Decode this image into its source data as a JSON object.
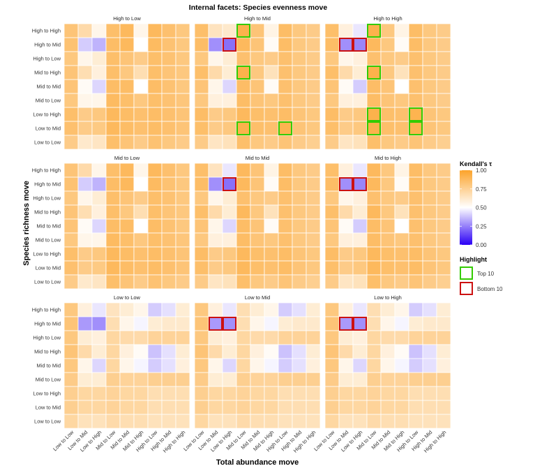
{
  "chart_data": {
    "type": "heatmap",
    "title": "Internal facets: Species evenness move",
    "xlabel": "Total abundance move",
    "ylabel": "Species richness move",
    "x_categories": [
      "Low to Low",
      "Low to Mid",
      "Low to High",
      "Mid to Low",
      "Mid to Mid",
      "Mid to High",
      "High to Low",
      "High to Mid",
      "High to High"
    ],
    "y_categories": [
      "High to High",
      "High to Mid",
      "High to Low",
      "Mid to High",
      "Mid to Mid",
      "Mid to Low",
      "Low to High",
      "Low to Mid",
      "Low to Low"
    ],
    "panels": [
      {
        "title": "High to Low",
        "values": [
          [
            0.82,
            0.7,
            0.55,
            0.85,
            0.88,
            0.55,
            0.88,
            0.84,
            0.8
          ],
          [
            0.83,
            0.4,
            0.35,
            0.86,
            0.88,
            0.5,
            0.87,
            0.83,
            0.8
          ],
          [
            0.8,
            0.55,
            0.6,
            0.85,
            0.82,
            0.78,
            0.85,
            0.83,
            0.8
          ],
          [
            0.82,
            0.68,
            0.58,
            0.85,
            0.8,
            0.68,
            0.85,
            0.82,
            0.8
          ],
          [
            0.82,
            0.52,
            0.42,
            0.86,
            0.86,
            0.5,
            0.86,
            0.83,
            0.8
          ],
          [
            0.8,
            0.55,
            0.55,
            0.87,
            0.85,
            0.8,
            0.85,
            0.83,
            0.81
          ],
          [
            0.85,
            0.78,
            0.8,
            0.88,
            0.86,
            0.84,
            0.86,
            0.84,
            0.82
          ],
          [
            0.84,
            0.78,
            0.79,
            0.88,
            0.86,
            0.84,
            0.86,
            0.84,
            0.82
          ],
          [
            0.78,
            0.62,
            0.64,
            0.85,
            0.82,
            0.78,
            0.83,
            0.8,
            0.78
          ]
        ],
        "top10": [],
        "bottom10": []
      },
      {
        "title": "High to Mid",
        "values": [
          [
            0.85,
            0.65,
            0.62,
            0.92,
            0.82,
            0.56,
            0.86,
            0.8,
            0.78
          ],
          [
            0.86,
            0.28,
            0.22,
            0.88,
            0.82,
            0.52,
            0.86,
            0.8,
            0.78
          ],
          [
            0.8,
            0.55,
            0.6,
            0.84,
            0.8,
            0.78,
            0.84,
            0.8,
            0.78
          ],
          [
            0.85,
            0.7,
            0.6,
            0.92,
            0.8,
            0.66,
            0.84,
            0.8,
            0.78
          ],
          [
            0.82,
            0.55,
            0.42,
            0.86,
            0.82,
            0.52,
            0.84,
            0.8,
            0.78
          ],
          [
            0.8,
            0.58,
            0.58,
            0.86,
            0.82,
            0.8,
            0.84,
            0.8,
            0.78
          ],
          [
            0.86,
            0.78,
            0.8,
            0.88,
            0.85,
            0.84,
            0.86,
            0.82,
            0.8
          ],
          [
            0.85,
            0.78,
            0.8,
            0.92,
            0.85,
            0.84,
            0.91,
            0.82,
            0.8
          ],
          [
            0.78,
            0.64,
            0.66,
            0.85,
            0.8,
            0.78,
            0.82,
            0.78,
            0.76
          ]
        ],
        "top10": [
          [
            0,
            3
          ],
          [
            3,
            3
          ],
          [
            7,
            3
          ],
          [
            7,
            6
          ]
        ],
        "bottom10": [
          [
            1,
            2
          ]
        ]
      },
      {
        "title": "High to High",
        "values": [
          [
            0.85,
            0.58,
            0.45,
            0.92,
            0.8,
            0.56,
            0.86,
            0.8,
            0.78
          ],
          [
            0.86,
            0.28,
            0.26,
            0.88,
            0.8,
            0.52,
            0.86,
            0.8,
            0.78
          ],
          [
            0.8,
            0.55,
            0.58,
            0.84,
            0.8,
            0.78,
            0.84,
            0.8,
            0.78
          ],
          [
            0.85,
            0.7,
            0.6,
            0.92,
            0.8,
            0.66,
            0.84,
            0.8,
            0.78
          ],
          [
            0.82,
            0.52,
            0.4,
            0.86,
            0.82,
            0.5,
            0.84,
            0.8,
            0.78
          ],
          [
            0.8,
            0.58,
            0.58,
            0.86,
            0.82,
            0.8,
            0.84,
            0.8,
            0.78
          ],
          [
            0.86,
            0.78,
            0.8,
            0.92,
            0.85,
            0.84,
            0.91,
            0.82,
            0.8
          ],
          [
            0.85,
            0.78,
            0.8,
            0.92,
            0.85,
            0.84,
            0.91,
            0.82,
            0.8
          ],
          [
            0.78,
            0.64,
            0.66,
            0.85,
            0.8,
            0.78,
            0.82,
            0.78,
            0.76
          ]
        ],
        "top10": [
          [
            0,
            3
          ],
          [
            3,
            3
          ],
          [
            6,
            3
          ],
          [
            7,
            3
          ],
          [
            6,
            6
          ],
          [
            7,
            6
          ]
        ],
        "bottom10": [
          [
            1,
            1
          ],
          [
            1,
            2
          ]
        ]
      },
      {
        "title": "Mid to Low",
        "values": [
          [
            0.82,
            0.7,
            0.55,
            0.85,
            0.88,
            0.55,
            0.88,
            0.84,
            0.8
          ],
          [
            0.83,
            0.4,
            0.35,
            0.86,
            0.88,
            0.5,
            0.87,
            0.83,
            0.8
          ],
          [
            0.8,
            0.55,
            0.6,
            0.85,
            0.82,
            0.78,
            0.85,
            0.83,
            0.8
          ],
          [
            0.82,
            0.68,
            0.58,
            0.85,
            0.8,
            0.68,
            0.85,
            0.82,
            0.8
          ],
          [
            0.82,
            0.52,
            0.42,
            0.86,
            0.86,
            0.5,
            0.86,
            0.83,
            0.8
          ],
          [
            0.8,
            0.55,
            0.55,
            0.87,
            0.85,
            0.8,
            0.85,
            0.83,
            0.81
          ],
          [
            0.85,
            0.78,
            0.8,
            0.88,
            0.86,
            0.84,
            0.86,
            0.84,
            0.82
          ],
          [
            0.84,
            0.78,
            0.79,
            0.88,
            0.86,
            0.84,
            0.86,
            0.84,
            0.82
          ],
          [
            0.78,
            0.62,
            0.64,
            0.85,
            0.82,
            0.78,
            0.83,
            0.8,
            0.78
          ]
        ],
        "top10": [],
        "bottom10": []
      },
      {
        "title": "Mid to Mid",
        "values": [
          [
            0.85,
            0.65,
            0.45,
            0.88,
            0.82,
            0.56,
            0.86,
            0.8,
            0.78
          ],
          [
            0.86,
            0.28,
            0.22,
            0.88,
            0.82,
            0.52,
            0.86,
            0.8,
            0.78
          ],
          [
            0.8,
            0.55,
            0.6,
            0.84,
            0.8,
            0.78,
            0.84,
            0.8,
            0.78
          ],
          [
            0.85,
            0.7,
            0.6,
            0.88,
            0.8,
            0.66,
            0.84,
            0.8,
            0.78
          ],
          [
            0.82,
            0.55,
            0.42,
            0.86,
            0.82,
            0.52,
            0.84,
            0.8,
            0.78
          ],
          [
            0.8,
            0.58,
            0.58,
            0.86,
            0.82,
            0.8,
            0.84,
            0.8,
            0.78
          ],
          [
            0.86,
            0.78,
            0.8,
            0.88,
            0.85,
            0.84,
            0.86,
            0.82,
            0.8
          ],
          [
            0.85,
            0.78,
            0.8,
            0.88,
            0.85,
            0.84,
            0.86,
            0.82,
            0.8
          ],
          [
            0.78,
            0.64,
            0.66,
            0.85,
            0.8,
            0.78,
            0.82,
            0.78,
            0.76
          ]
        ],
        "top10": [],
        "bottom10": [
          [
            1,
            2
          ]
        ]
      },
      {
        "title": "Mid to High",
        "values": [
          [
            0.85,
            0.58,
            0.45,
            0.88,
            0.8,
            0.56,
            0.86,
            0.8,
            0.78
          ],
          [
            0.86,
            0.28,
            0.26,
            0.88,
            0.8,
            0.52,
            0.86,
            0.8,
            0.78
          ],
          [
            0.8,
            0.55,
            0.58,
            0.84,
            0.8,
            0.78,
            0.84,
            0.8,
            0.78
          ],
          [
            0.85,
            0.7,
            0.6,
            0.88,
            0.8,
            0.66,
            0.84,
            0.8,
            0.78
          ],
          [
            0.82,
            0.52,
            0.4,
            0.86,
            0.82,
            0.5,
            0.84,
            0.8,
            0.78
          ],
          [
            0.8,
            0.58,
            0.58,
            0.86,
            0.82,
            0.8,
            0.84,
            0.8,
            0.78
          ],
          [
            0.86,
            0.78,
            0.8,
            0.88,
            0.85,
            0.84,
            0.86,
            0.82,
            0.8
          ],
          [
            0.85,
            0.78,
            0.8,
            0.88,
            0.85,
            0.84,
            0.86,
            0.82,
            0.8
          ],
          [
            0.78,
            0.64,
            0.66,
            0.85,
            0.8,
            0.78,
            0.82,
            0.78,
            0.76
          ]
        ],
        "top10": [],
        "bottom10": [
          [
            1,
            1
          ],
          [
            1,
            2
          ]
        ]
      },
      {
        "title": "Low to Low",
        "values": [
          [
            0.8,
            0.58,
            0.45,
            0.65,
            0.6,
            0.55,
            0.4,
            0.44,
            0.6
          ],
          [
            0.82,
            0.3,
            0.28,
            0.68,
            0.55,
            0.48,
            0.6,
            0.62,
            0.62
          ],
          [
            0.8,
            0.6,
            0.58,
            0.72,
            0.7,
            0.7,
            0.74,
            0.74,
            0.74
          ],
          [
            0.82,
            0.7,
            0.6,
            0.72,
            0.58,
            0.52,
            0.38,
            0.44,
            0.6
          ],
          [
            0.8,
            0.55,
            0.42,
            0.72,
            0.55,
            0.48,
            0.4,
            0.44,
            0.58
          ],
          [
            0.78,
            0.6,
            0.6,
            0.76,
            0.74,
            0.74,
            0.76,
            0.76,
            0.76
          ],
          [
            0.76,
            0.72,
            0.72,
            0.74,
            0.72,
            0.72,
            0.68,
            0.68,
            0.68
          ],
          [
            0.76,
            0.72,
            0.72,
            0.74,
            0.72,
            0.72,
            0.68,
            0.68,
            0.68
          ],
          [
            0.72,
            0.66,
            0.66,
            0.7,
            0.68,
            0.68,
            0.66,
            0.66,
            0.66
          ]
        ],
        "top10": [],
        "bottom10": []
      },
      {
        "title": "Low to Mid",
        "values": [
          [
            0.8,
            0.58,
            0.45,
            0.68,
            0.6,
            0.55,
            0.4,
            0.44,
            0.6
          ],
          [
            0.82,
            0.3,
            0.28,
            0.68,
            0.55,
            0.48,
            0.6,
            0.62,
            0.62
          ],
          [
            0.8,
            0.6,
            0.58,
            0.72,
            0.7,
            0.7,
            0.74,
            0.74,
            0.74
          ],
          [
            0.82,
            0.7,
            0.6,
            0.72,
            0.58,
            0.52,
            0.38,
            0.44,
            0.6
          ],
          [
            0.8,
            0.55,
            0.42,
            0.72,
            0.55,
            0.48,
            0.4,
            0.44,
            0.58
          ],
          [
            0.78,
            0.6,
            0.6,
            0.76,
            0.74,
            0.74,
            0.76,
            0.76,
            0.76
          ],
          [
            0.76,
            0.72,
            0.72,
            0.74,
            0.72,
            0.72,
            0.68,
            0.68,
            0.68
          ],
          [
            0.76,
            0.72,
            0.72,
            0.74,
            0.72,
            0.72,
            0.68,
            0.68,
            0.68
          ],
          [
            0.72,
            0.66,
            0.66,
            0.7,
            0.68,
            0.68,
            0.66,
            0.66,
            0.66
          ]
        ],
        "top10": [],
        "bottom10": [
          [
            1,
            1
          ],
          [
            1,
            2
          ]
        ]
      },
      {
        "title": "Low to High",
        "values": [
          [
            0.8,
            0.58,
            0.45,
            0.68,
            0.6,
            0.55,
            0.4,
            0.44,
            0.6
          ],
          [
            0.82,
            0.3,
            0.28,
            0.68,
            0.55,
            0.48,
            0.6,
            0.62,
            0.62
          ],
          [
            0.8,
            0.6,
            0.58,
            0.72,
            0.7,
            0.7,
            0.74,
            0.74,
            0.74
          ],
          [
            0.82,
            0.7,
            0.6,
            0.72,
            0.58,
            0.52,
            0.38,
            0.44,
            0.6
          ],
          [
            0.8,
            0.55,
            0.42,
            0.72,
            0.55,
            0.48,
            0.4,
            0.44,
            0.58
          ],
          [
            0.78,
            0.6,
            0.6,
            0.76,
            0.74,
            0.74,
            0.76,
            0.76,
            0.76
          ],
          [
            0.76,
            0.72,
            0.72,
            0.74,
            0.72,
            0.72,
            0.68,
            0.68,
            0.68
          ],
          [
            0.76,
            0.72,
            0.72,
            0.74,
            0.72,
            0.72,
            0.68,
            0.68,
            0.68
          ],
          [
            0.72,
            0.66,
            0.66,
            0.7,
            0.68,
            0.68,
            0.66,
            0.66,
            0.66
          ]
        ],
        "top10": [],
        "bottom10": [
          [
            1,
            1
          ],
          [
            1,
            2
          ]
        ]
      }
    ],
    "colorbar": {
      "title": "Kendall's τ",
      "range": [
        0,
        1
      ],
      "ticks": [
        "1.00",
        "0.75",
        "0.50",
        "0.25",
        "0.00"
      ],
      "tick_values": [
        1.0,
        0.75,
        0.5,
        0.25,
        0.0
      ],
      "stops": {
        "low": "#2a00f5",
        "mid": "#ffffff",
        "high": "#fca32a"
      }
    },
    "highlight_legend": {
      "title": "Highlight",
      "items": [
        {
          "label": "Top 10",
          "color": "#33cc00"
        },
        {
          "label": "Bottom 10",
          "color": "#cc1111"
        }
      ]
    }
  }
}
